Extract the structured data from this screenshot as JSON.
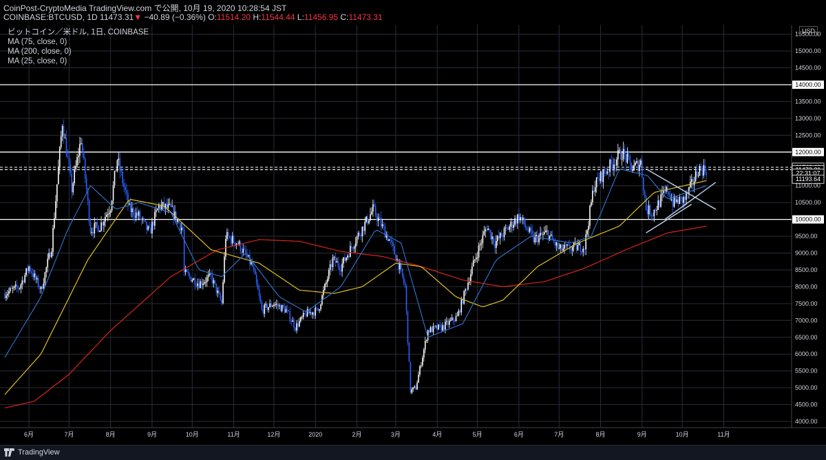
{
  "header": {
    "line1": "CoinPost-CryptoMedia TradingView.com で公開, 10月 19, 2020 10:28:54 JST",
    "symbol": "COINBASE:BTCUSD, 1D",
    "last": "11473.31",
    "arrow": "▼",
    "change": "−40.89 (−0.36%)",
    "o_label": "O:",
    "o_value": "11514.20",
    "h_label": "H:",
    "h_value": "11544.44",
    "l_label": "L:",
    "l_value": "11456.95",
    "c_label": "C:",
    "c_value": "11473.31"
  },
  "legend": {
    "title": "ビットコイン／米ドル, 1日, COINBASE",
    "ma75": "MA (75, close, 0)",
    "ma200": "MA (200, close, 0)",
    "ma25": "MA (25, close, 0)"
  },
  "axis": {
    "currency": "USD"
  },
  "footer": {
    "brand": "TradingView"
  },
  "colors": {
    "up": "#ffffff",
    "down": "#2962ff",
    "ma25": "#2f6fc5",
    "ma75": "#e0c020",
    "ma200": "#d9241b",
    "hline": "#ffffff",
    "price_label_bg": "#ffffff"
  },
  "chart_data": {
    "type": "candlestick",
    "title": "ビットコイン／米ドル, 1日, COINBASE",
    "ylabel": "USD",
    "ylim": [
      3900,
      15900
    ],
    "y_ticks": [
      4000,
      4500,
      5000,
      5500,
      6000,
      6500,
      7000,
      7500,
      8000,
      8500,
      9000,
      9500,
      10000,
      10500,
      11000,
      11500,
      12000,
      12500,
      13000,
      13500,
      14000,
      14500,
      15000,
      15500
    ],
    "x_ticks": [
      "6月",
      "7月",
      "8月",
      "9月",
      "10月",
      "11月",
      "12月",
      "2020",
      "2月",
      "3月",
      "4月",
      "5月",
      "6月",
      "7月",
      "8月",
      "9月",
      "10月",
      "11月"
    ],
    "grid": true,
    "horizontal_lines": [
      14000,
      12000,
      11549.11,
      11473.31,
      10000
    ],
    "price_labels": [
      {
        "value": 14000,
        "text": "14000.00"
      },
      {
        "value": 12000,
        "text": "12000.00"
      },
      {
        "value": 11549.11,
        "text": "11549.11"
      },
      {
        "value": 11473.31,
        "text": "11473.31"
      },
      {
        "value": 11370,
        "text": "22:31:07"
      },
      {
        "value": 11193.64,
        "text": "11193.64"
      },
      {
        "value": 10000,
        "text": "10000.00"
      }
    ],
    "price_anchors": [
      [
        "2019-05-14",
        7800
      ],
      [
        "2019-05-25",
        8000
      ],
      [
        "2019-06-01",
        8600
      ],
      [
        "2019-06-10",
        7900
      ],
      [
        "2019-06-18",
        9200
      ],
      [
        "2019-06-26",
        12900
      ],
      [
        "2019-07-03",
        10900
      ],
      [
        "2019-07-10",
        12400
      ],
      [
        "2019-07-17",
        9700
      ],
      [
        "2019-07-24",
        9800
      ],
      [
        "2019-08-01",
        10400
      ],
      [
        "2019-08-06",
        11800
      ],
      [
        "2019-08-15",
        10300
      ],
      [
        "2019-08-22",
        10100
      ],
      [
        "2019-08-30",
        9600
      ],
      [
        "2019-09-06",
        10400
      ],
      [
        "2019-09-15",
        10300
      ],
      [
        "2019-09-24",
        9700
      ],
      [
        "2019-09-25",
        8400
      ],
      [
        "2019-10-06",
        8100
      ],
      [
        "2019-10-15",
        8300
      ],
      [
        "2019-10-23",
        7500
      ],
      [
        "2019-10-26",
        9500
      ],
      [
        "2019-11-04",
        9300
      ],
      [
        "2019-11-15",
        8600
      ],
      [
        "2019-11-22",
        7300
      ],
      [
        "2019-12-01",
        7500
      ],
      [
        "2019-12-10",
        7300
      ],
      [
        "2019-12-17",
        6800
      ],
      [
        "2019-12-25",
        7200
      ],
      [
        "2020-01-03",
        7300
      ],
      [
        "2020-01-14",
        8800
      ],
      [
        "2020-01-20",
        8600
      ],
      [
        "2020-01-31",
        9400
      ],
      [
        "2020-02-09",
        10000
      ],
      [
        "2020-02-13",
        10300
      ],
      [
        "2020-02-25",
        9400
      ],
      [
        "2020-03-02",
        8800
      ],
      [
        "2020-03-08",
        8000
      ],
      [
        "2020-03-12",
        4900
      ],
      [
        "2020-03-16",
        5000
      ],
      [
        "2020-03-25",
        6700
      ],
      [
        "2020-04-05",
        6800
      ],
      [
        "2020-04-16",
        7100
      ],
      [
        "2020-04-29",
        8800
      ],
      [
        "2020-05-08",
        9800
      ],
      [
        "2020-05-14",
        9300
      ],
      [
        "2020-06-01",
        10100
      ],
      [
        "2020-06-12",
        9400
      ],
      [
        "2020-06-22",
        9600
      ],
      [
        "2020-07-01",
        9100
      ],
      [
        "2020-07-20",
        9200
      ],
      [
        "2020-07-27",
        11000
      ],
      [
        "2020-08-02",
        11300
      ],
      [
        "2020-08-17",
        12000
      ],
      [
        "2020-08-25",
        11500
      ],
      [
        "2020-08-31",
        11700
      ],
      [
        "2020-09-04",
        10300
      ],
      [
        "2020-09-09",
        10200
      ],
      [
        "2020-09-20",
        10900
      ],
      [
        "2020-09-24",
        10500
      ],
      [
        "2020-10-03",
        10600
      ],
      [
        "2020-10-09",
        11100
      ],
      [
        "2020-10-13",
        11500
      ],
      [
        "2020-10-19",
        11473
      ]
    ],
    "ma25_anchors": [
      [
        "2019-05-14",
        5900
      ],
      [
        "2019-06-10",
        7700
      ],
      [
        "2019-06-30",
        9700
      ],
      [
        "2019-07-17",
        11000
      ],
      [
        "2019-08-05",
        10300
      ],
      [
        "2019-08-22",
        10500
      ],
      [
        "2019-09-15",
        10200
      ],
      [
        "2019-10-06",
        8500
      ],
      [
        "2019-10-23",
        8300
      ],
      [
        "2019-11-10",
        9000
      ],
      [
        "2019-12-05",
        7700
      ],
      [
        "2019-12-25",
        7250
      ],
      [
        "2020-01-20",
        8000
      ],
      [
        "2020-02-15",
        9700
      ],
      [
        "2020-03-05",
        9300
      ],
      [
        "2020-03-25",
        6500
      ],
      [
        "2020-04-20",
        6900
      ],
      [
        "2020-05-15",
        8800
      ],
      [
        "2020-06-10",
        9500
      ],
      [
        "2020-07-10",
        9300
      ],
      [
        "2020-07-25",
        9500
      ],
      [
        "2020-08-15",
        11500
      ],
      [
        "2020-09-05",
        11300
      ],
      [
        "2020-09-20",
        10600
      ],
      [
        "2020-10-19",
        11000
      ]
    ],
    "ma75_anchors": [
      [
        "2019-05-14",
        4800
      ],
      [
        "2019-06-10",
        6000
      ],
      [
        "2019-07-15",
        8800
      ],
      [
        "2019-08-15",
        10600
      ],
      [
        "2019-09-10",
        10400
      ],
      [
        "2019-10-15",
        9100
      ],
      [
        "2019-11-20",
        8700
      ],
      [
        "2019-12-20",
        7900
      ],
      [
        "2020-01-15",
        7800
      ],
      [
        "2020-02-05",
        8000
      ],
      [
        "2020-03-01",
        8700
      ],
      [
        "2020-03-20",
        8600
      ],
      [
        "2020-04-15",
        7700
      ],
      [
        "2020-05-05",
        7400
      ],
      [
        "2020-05-20",
        7600
      ],
      [
        "2020-06-15",
        8600
      ],
      [
        "2020-07-15",
        9300
      ],
      [
        "2020-08-15",
        9800
      ],
      [
        "2020-09-10",
        10800
      ],
      [
        "2020-10-19",
        11150
      ]
    ],
    "ma200_anchors": [
      [
        "2019-05-14",
        4400
      ],
      [
        "2019-06-05",
        4600
      ],
      [
        "2019-07-01",
        5400
      ],
      [
        "2019-08-01",
        6700
      ],
      [
        "2019-09-15",
        8300
      ],
      [
        "2019-10-20",
        9100
      ],
      [
        "2019-11-20",
        9400
      ],
      [
        "2019-12-20",
        9350
      ],
      [
        "2020-01-20",
        9050
      ],
      [
        "2020-02-20",
        8900
      ],
      [
        "2020-03-20",
        8600
      ],
      [
        "2020-04-20",
        8200
      ],
      [
        "2020-05-20",
        8000
      ],
      [
        "2020-06-20",
        8150
      ],
      [
        "2020-07-20",
        8550
      ],
      [
        "2020-08-20",
        9100
      ],
      [
        "2020-09-20",
        9600
      ],
      [
        "2020-10-19",
        9800
      ]
    ],
    "trendlines": [
      {
        "from": [
          "2020-09-04",
          9600
        ],
        "to": [
          "2020-10-08",
          10450
        ]
      },
      {
        "from": [
          "2020-09-04",
          11500
        ],
        "to": [
          "2020-10-26",
          10300
        ]
      },
      {
        "from": [
          "2020-09-18",
          10000
        ],
        "to": [
          "2020-10-26",
          11100
        ]
      }
    ]
  }
}
